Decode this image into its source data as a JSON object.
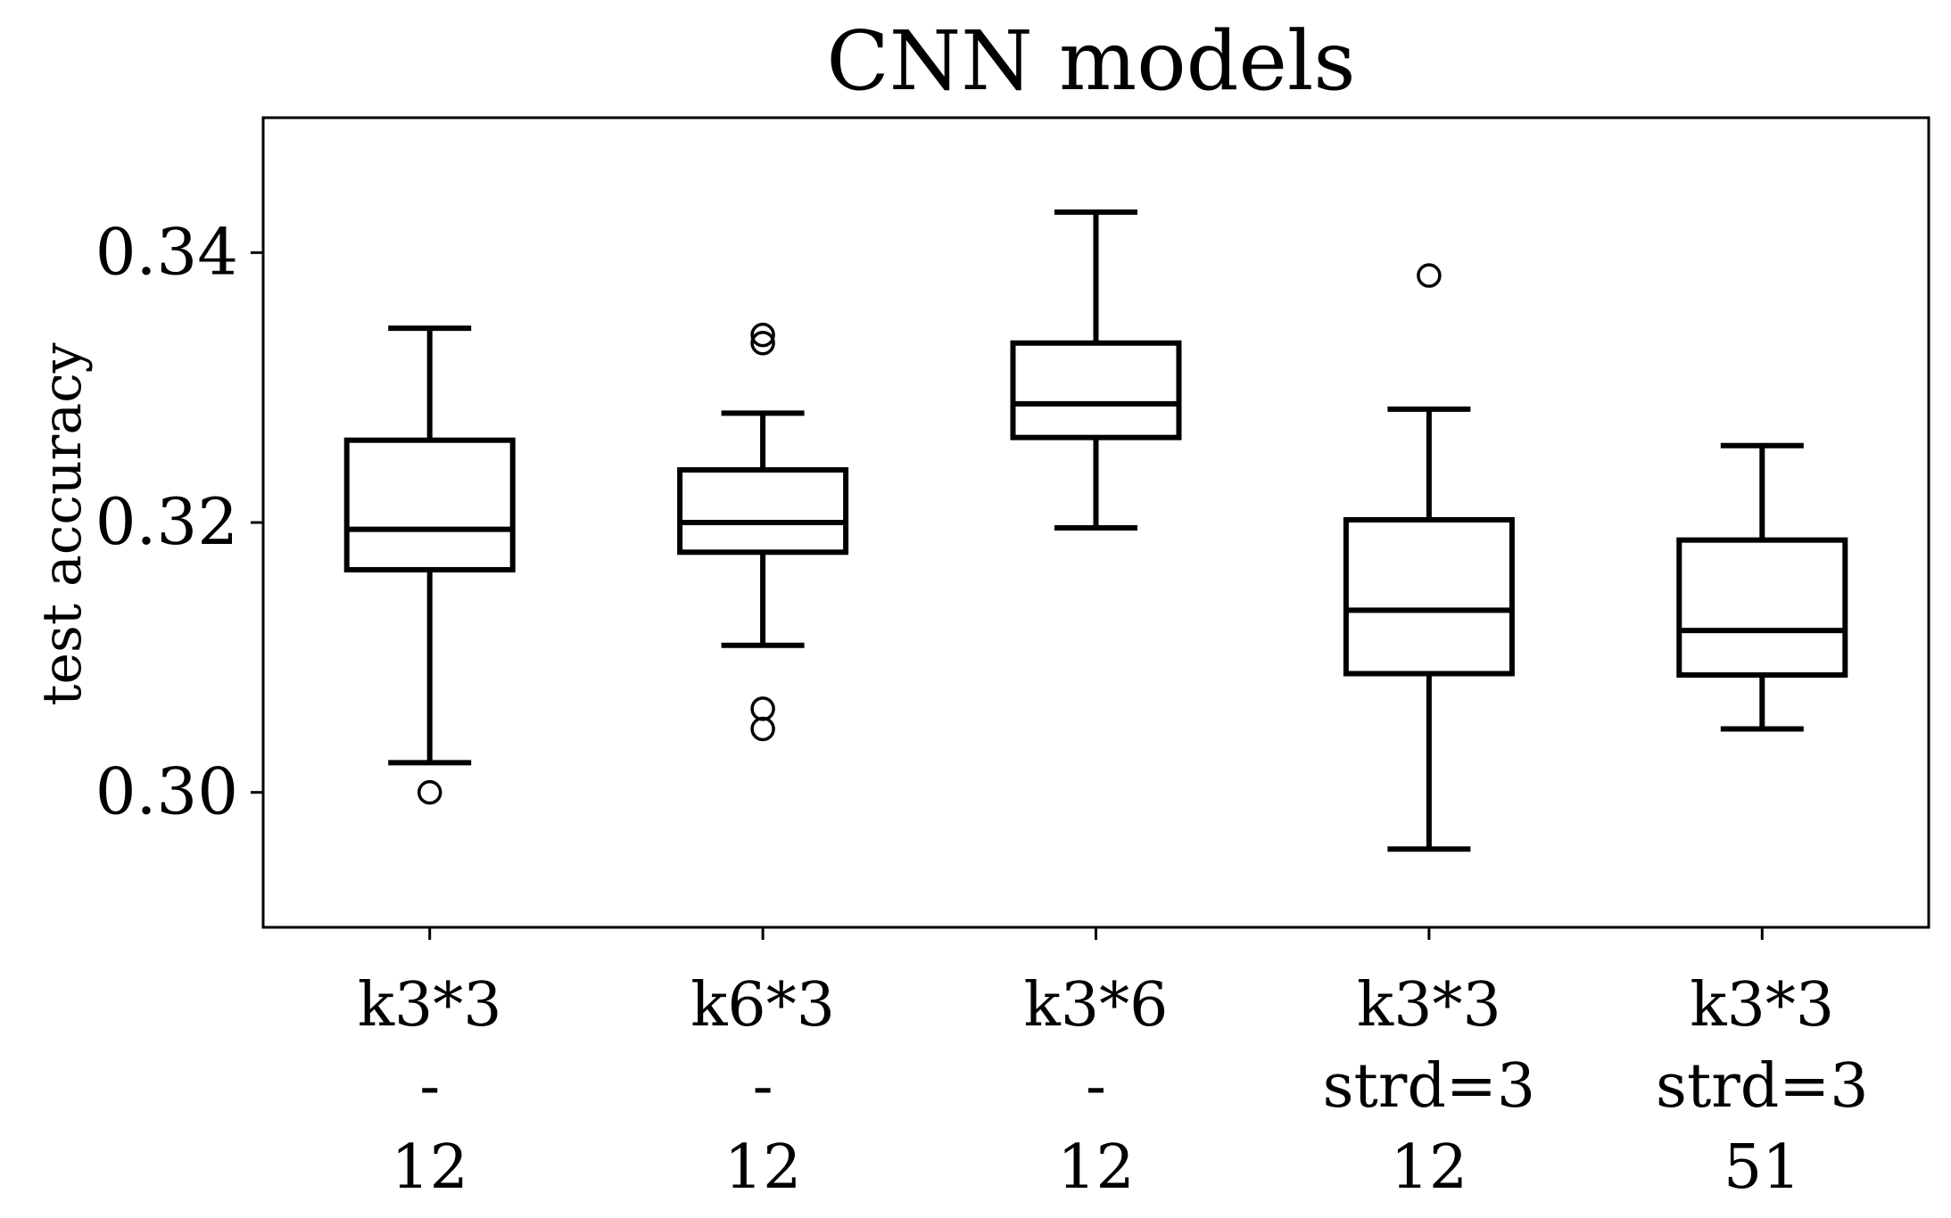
{
  "chart_data": {
    "type": "box",
    "title": "CNN models",
    "xlabel": "",
    "ylabel": "test accuracy",
    "ylim": [
      0.29,
      0.35
    ],
    "yticks": [
      0.3,
      0.32,
      0.34
    ],
    "ytick_labels": [
      "0.30",
      "0.32",
      "0.34"
    ],
    "grid": false,
    "categories": [
      [
        "k3*3",
        "-",
        "12"
      ],
      [
        "k6*3",
        "-",
        "12"
      ],
      [
        "k3*6",
        "-",
        "12"
      ],
      [
        "k3*3",
        "strd=3",
        "12"
      ],
      [
        "k3*3",
        "strd=3",
        "51"
      ]
    ],
    "boxes": [
      {
        "whisker_low": 0.3022,
        "q1": 0.3165,
        "median": 0.3195,
        "q3": 0.3261,
        "whisker_high": 0.3344,
        "outliers": [
          0.3
        ]
      },
      {
        "whisker_low": 0.3109,
        "q1": 0.3178,
        "median": 0.32,
        "q3": 0.3239,
        "whisker_high": 0.3281,
        "outliers": [
          0.3339,
          0.3333,
          0.3062,
          0.3047
        ]
      },
      {
        "whisker_low": 0.3196,
        "q1": 0.3263,
        "median": 0.3288,
        "q3": 0.3333,
        "whisker_high": 0.343,
        "outliers": []
      },
      {
        "whisker_low": 0.2958,
        "q1": 0.3088,
        "median": 0.3135,
        "q3": 0.3202,
        "whisker_high": 0.3284,
        "outliers": [
          0.3383
        ]
      },
      {
        "whisker_low": 0.3047,
        "q1": 0.3087,
        "median": 0.312,
        "q3": 0.3187,
        "whisker_high": 0.3257,
        "outliers": []
      }
    ]
  }
}
